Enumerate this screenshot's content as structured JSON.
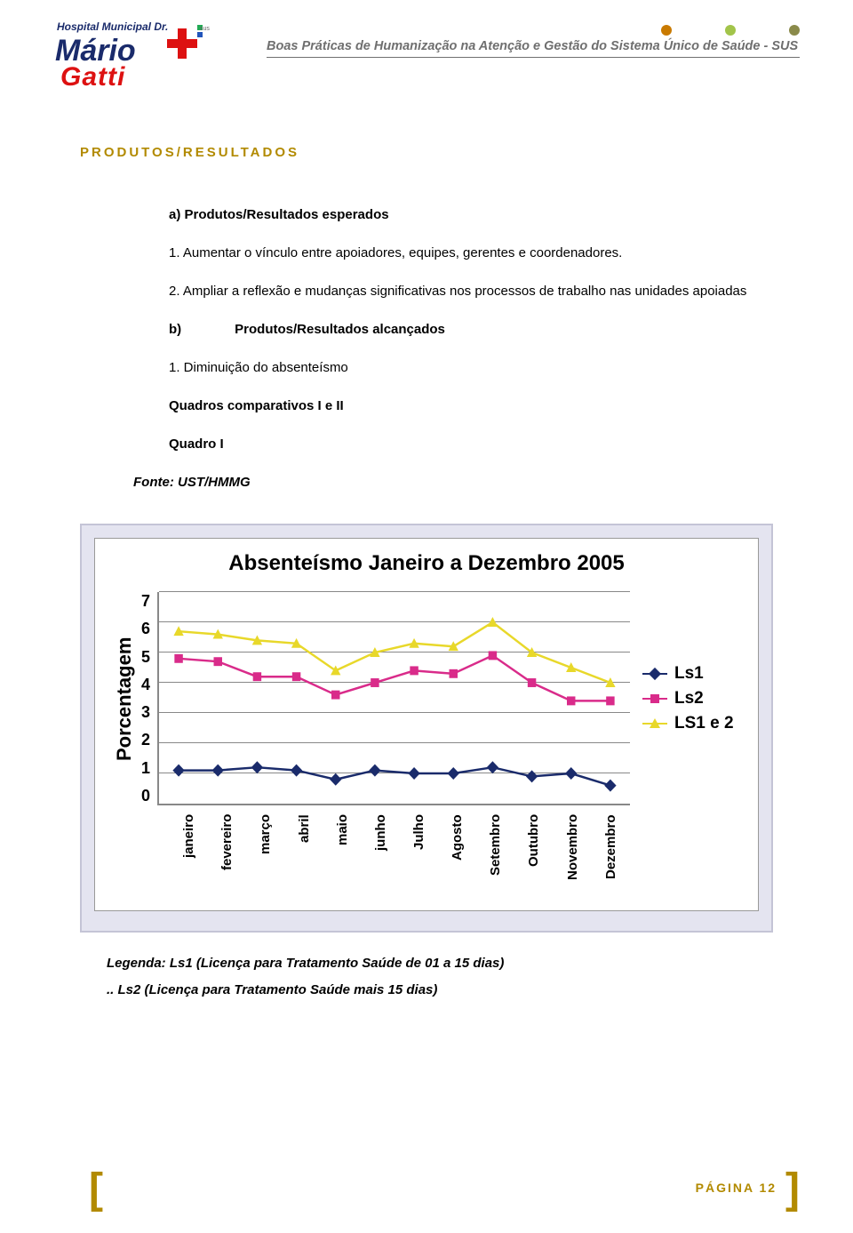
{
  "header": {
    "doc_title": "Boas Práticas de Humanização na Atenção e Gestão do Sistema Único de Saúde - SUS",
    "logo_top": "Hospital Municipal Dr.",
    "logo_name1": "Mário",
    "logo_name2": "Gatti",
    "dot_colors": [
      "#c97a00",
      "#a2c44a",
      "#8a8a4a"
    ]
  },
  "section": {
    "heading": "PRODUTOS/RESULTADOS",
    "sub_a_label": "a)",
    "sub_a_text": "Produtos/Resultados esperados",
    "item_a1": "1. Aumentar o vínculo entre apoiadores, equipes, gerentes e coordenadores.",
    "item_a2": "2. Ampliar a reflexão e mudanças significativas nos processos de trabalho nas unidades apoiadas",
    "sub_b_label": "b)",
    "sub_b_text": "Produtos/Resultados alcançados",
    "item_b1": "1. Diminuição do absenteísmo",
    "quadros_label": "Quadros comparativos I e II",
    "quadro_label": "Quadro I",
    "fonte_label": "Fonte: UST/HMMG"
  },
  "chart": {
    "type": "line",
    "title": "Absenteísmo Janeiro a Dezembro 2005",
    "ylabel": "Porcentagem",
    "ylim": [
      0,
      7
    ],
    "ytick_step": 1,
    "yticks": [
      "7",
      "6",
      "5",
      "4",
      "3",
      "2",
      "1",
      "0"
    ],
    "categories": [
      "janeiro",
      "fevereiro",
      "março",
      "abril",
      "maio",
      "junho",
      "Julho",
      "Agosto",
      "Setembro",
      "Outubro",
      "Novembro",
      "Dezembro"
    ],
    "background_color": "#ffffff",
    "grid_color": "#888888",
    "container_bg": "#e4e4f0",
    "container_border": "#c4c4d6",
    "title_fontsize": 24,
    "label_fontsize": 22,
    "tick_fontsize": 18,
    "series": [
      {
        "name": "Ls1",
        "color": "#1a2b6b",
        "marker": "diamond",
        "values": [
          1.1,
          1.1,
          1.2,
          1.1,
          0.8,
          1.1,
          1.0,
          1.0,
          1.2,
          0.9,
          1.0,
          0.6
        ]
      },
      {
        "name": "Ls2",
        "color": "#d92b8a",
        "marker": "square",
        "values": [
          4.8,
          4.7,
          4.2,
          4.2,
          3.6,
          4.0,
          4.4,
          4.3,
          4.9,
          4.0,
          3.4,
          3.4
        ]
      },
      {
        "name": "LS1 e 2",
        "color": "#e8d82a",
        "marker": "triangle",
        "values": [
          5.7,
          5.6,
          5.4,
          5.3,
          4.4,
          5.0,
          5.3,
          5.2,
          6.0,
          5.0,
          4.5,
          4.0
        ]
      }
    ],
    "legend_labels": [
      "Ls1",
      "Ls2",
      "LS1 e 2"
    ]
  },
  "legenda": {
    "line1": "Legenda: Ls1 (Licença para Tratamento Saúde de 01 a 15 dias)",
    "line2": ".. Ls2 (Licença para Tratamento Saúde mais 15 dias)"
  },
  "footer": {
    "page_label": "PÁGINA 12"
  }
}
